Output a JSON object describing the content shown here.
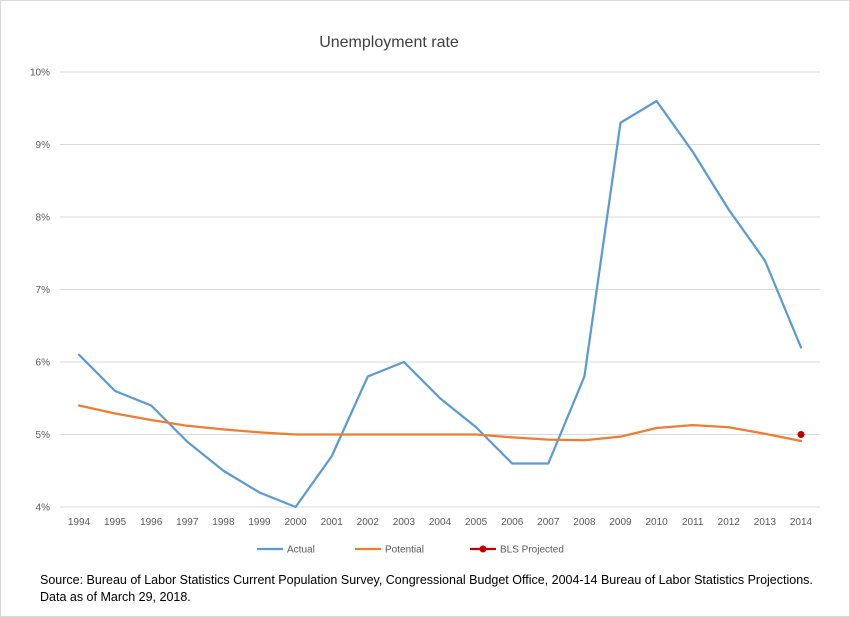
{
  "chart_data": {
    "type": "line",
    "title": "Unemployment rate",
    "xlabel": "",
    "ylabel": "",
    "ylim": [
      4,
      10
    ],
    "yticks": [
      4,
      5,
      6,
      7,
      8,
      9,
      10
    ],
    "ytick_labels": [
      "4%",
      "5%",
      "6%",
      "7%",
      "8%",
      "9%",
      "10%"
    ],
    "grid": true,
    "legend_position": "bottom",
    "categories": [
      "1994",
      "1995",
      "1996",
      "1997",
      "1998",
      "1999",
      "2000",
      "2001",
      "2002",
      "2003",
      "2004",
      "2005",
      "2006",
      "2007",
      "2008",
      "2009",
      "2010",
      "2011",
      "2012",
      "2013",
      "2014"
    ],
    "series": [
      {
        "name": "Actual",
        "color": "#5b9bd5",
        "values": [
          6.1,
          5.6,
          5.4,
          4.9,
          4.5,
          4.2,
          4.0,
          4.7,
          5.8,
          6.0,
          5.5,
          5.1,
          4.6,
          4.6,
          5.8,
          9.3,
          9.6,
          8.9,
          8.1,
          7.4,
          6.2
        ]
      },
      {
        "name": "Potential",
        "color": "#ed7d31",
        "values": [
          5.4,
          5.29,
          5.2,
          5.12,
          5.07,
          5.03,
          5.0,
          5.0,
          5.0,
          5.0,
          5.0,
          5.0,
          4.96,
          4.93,
          4.92,
          4.97,
          5.09,
          5.13,
          5.1,
          5.01,
          4.91
        ]
      },
      {
        "name": "BLS Projected",
        "color": "#c00000",
        "points": [
          {
            "x": "2014",
            "y": 5.0
          }
        ]
      }
    ]
  },
  "source": {
    "line1": "Source: Bureau of Labor Statistics Current Population Survey, Congressional Budget Office, 2004-14 Bureau of Labor Statistics Projections.",
    "line2": "Data as of March 29, 2018."
  }
}
